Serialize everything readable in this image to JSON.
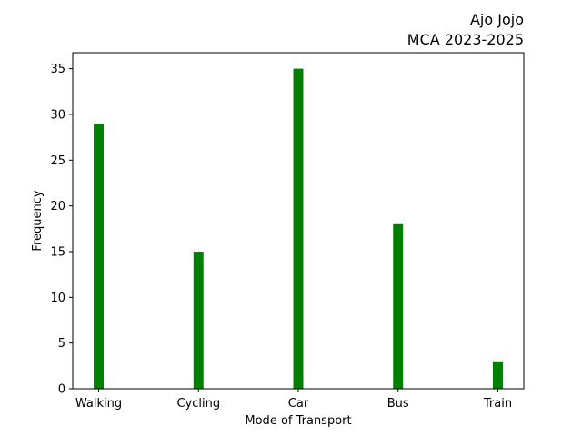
{
  "chart_data": {
    "type": "bar",
    "title_lines": [
      "Ajo Jojo",
      "MCA 2023-2025"
    ],
    "xlabel": "Mode of Transport",
    "ylabel": "Frequency",
    "categories": [
      "Walking",
      "Cycling",
      "Car",
      "Bus",
      "Train"
    ],
    "values": [
      29,
      15,
      35,
      18,
      3
    ],
    "ylim": [
      0,
      36.75
    ],
    "yticks": [
      0,
      5,
      10,
      15,
      20,
      25,
      30,
      35
    ],
    "bar_color": "#008000",
    "grid": false,
    "legend": "none"
  }
}
